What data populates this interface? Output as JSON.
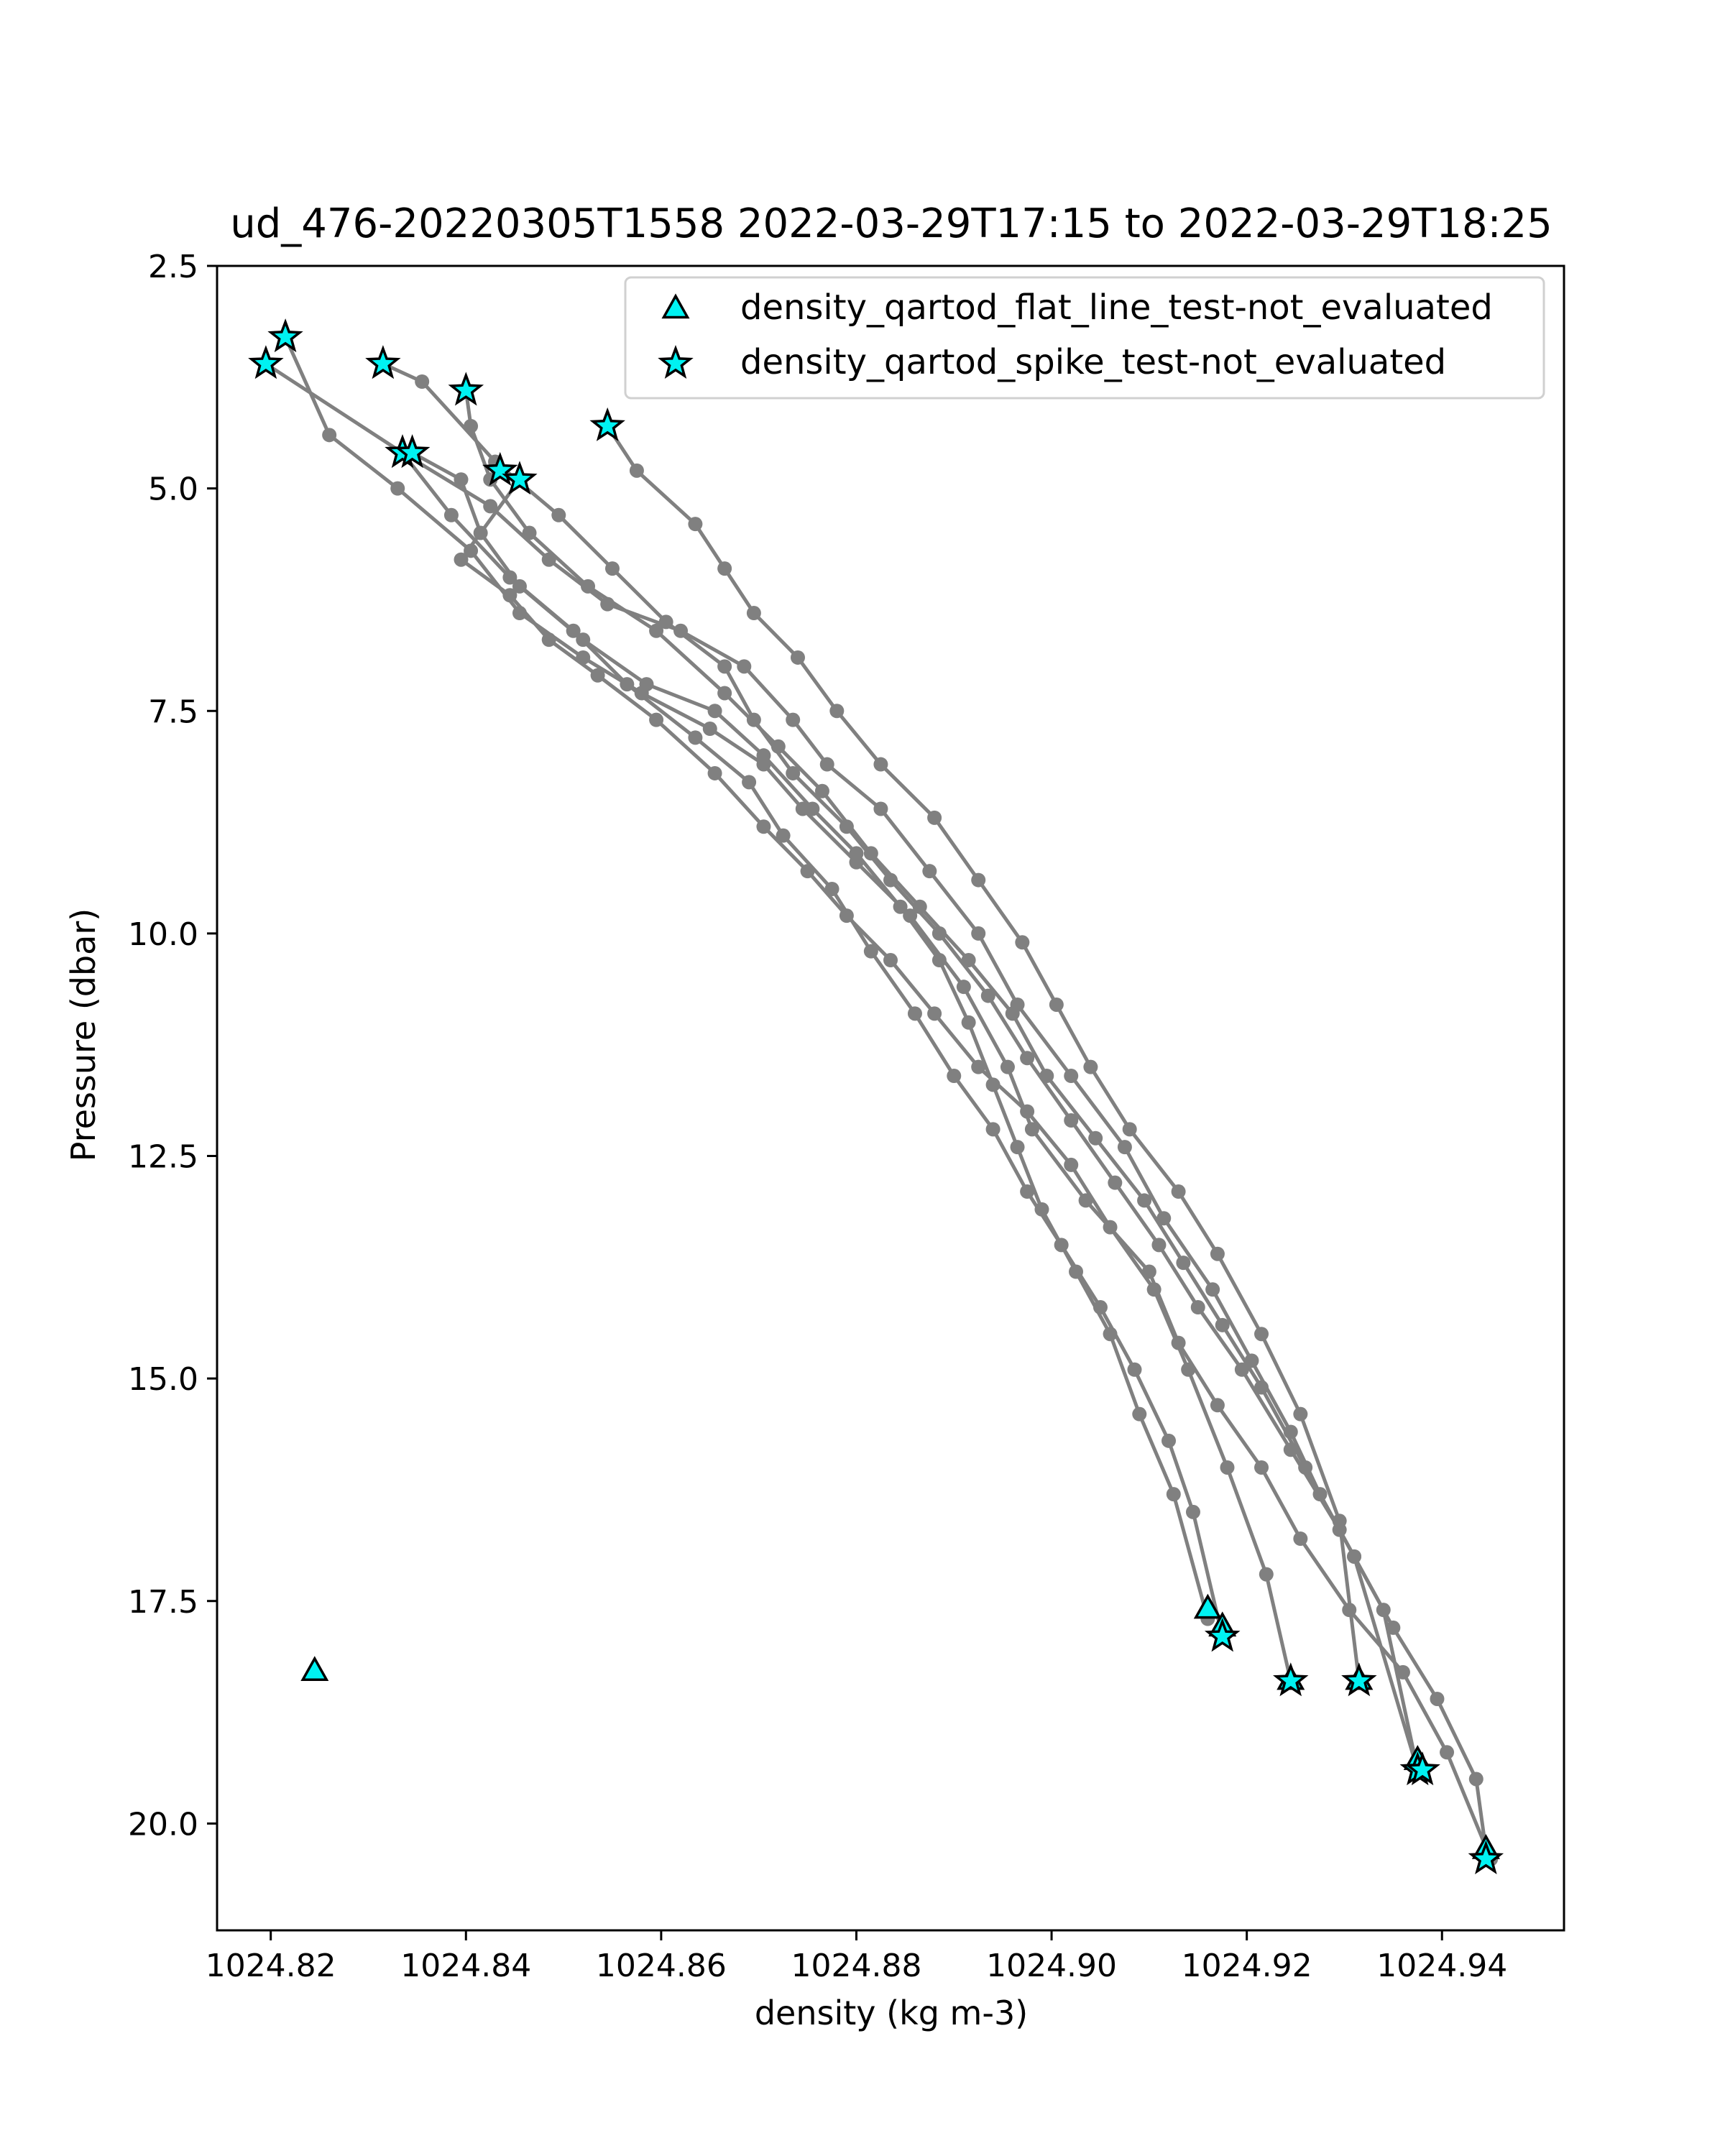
{
  "chart_data": {
    "type": "scatter",
    "title": "ud_476-20220305T1558 2022-03-29T17:15 to 2022-03-29T18:25",
    "xlabel": "density (kg m-3)",
    "ylabel": "Pressure (dbar)",
    "xlim": [
      1024.8145,
      1024.9525
    ],
    "ylim": [
      21.2,
      2.5
    ],
    "y_inverted": true,
    "xticks": [
      1024.82,
      1024.84,
      1024.86,
      1024.88,
      1024.9,
      1024.92,
      1024.94
    ],
    "xtick_labels": [
      "1024.82",
      "1024.84",
      "1024.86",
      "1024.88",
      "1024.90",
      "1024.92",
      "1024.94"
    ],
    "yticks": [
      2.5,
      5.0,
      7.5,
      10.0,
      12.5,
      15.0,
      17.5,
      20.0
    ],
    "ytick_labels": [
      "2.5",
      "5.0",
      "7.5",
      "10.0",
      "12.5",
      "15.0",
      "17.5",
      "20.0"
    ],
    "grid": false,
    "legend_position": "top-right",
    "colors": {
      "profile_line": "#808080",
      "marker_fill": "#00f2f2",
      "marker_edge": "#000000"
    },
    "profiles": [
      {
        "x": [
          1024.8215,
          1024.826,
          1024.833,
          1024.8405,
          1024.8455,
          1024.852,
          1024.858,
          1024.865,
          1024.8705,
          1024.8745,
          1024.88,
          1024.8855,
          1024.891,
          1024.8955,
          1024.898,
          1024.9035,
          1024.91,
          1024.913,
          1024.917,
          1024.9215,
          1024.9255,
          1024.9305,
          1024.936,
          1024.9405,
          1024.945
        ],
        "y": [
          3.3,
          4.4,
          5.0,
          5.7,
          6.4,
          6.9,
          7.3,
          7.7,
          8.1,
          8.6,
          9.2,
          9.8,
          10.6,
          11.5,
          12.2,
          13.0,
          13.8,
          14.6,
          15.3,
          16.0,
          16.8,
          17.6,
          18.3,
          19.2,
          20.4
        ]
      },
      {
        "x": [
          1024.8195,
          1024.8335,
          1024.8425,
          1024.8485,
          1024.8545,
          1024.862,
          1024.8685,
          1024.8735,
          1024.877,
          1024.8825,
          1024.8875,
          1024.8925,
          1024.8965,
          1024.902,
          1024.9075,
          1024.9115,
          1024.9165,
          1024.9205,
          1024.9245,
          1024.9275,
          1024.931,
          1024.935,
          1024.9395,
          1024.9435,
          1024.9445
        ],
        "y": [
          3.6,
          4.6,
          5.2,
          5.8,
          6.3,
          6.6,
          7.0,
          7.6,
          8.1,
          8.6,
          9.3,
          10.0,
          10.8,
          11.6,
          12.4,
          13.2,
          14.0,
          14.8,
          15.6,
          16.3,
          17.0,
          17.8,
          18.6,
          19.5,
          20.3
        ]
      },
      {
        "x": [
          1024.8315,
          1024.8355,
          1024.843,
          1024.8495,
          1024.855,
          1024.8605,
          1024.8665,
          1024.8695,
          1024.8735,
          1024.879,
          1024.8835,
          1024.8885,
          1024.8935,
          1024.8975,
          1024.902,
          1024.9065,
          1024.911,
          1024.915,
          1024.9195,
          1024.9245,
          1024.9295,
          1024.934,
          1024.9375
        ],
        "y": [
          3.6,
          3.8,
          4.7,
          5.3,
          5.9,
          6.5,
          7.0,
          7.6,
          8.2,
          8.8,
          9.4,
          10.0,
          10.7,
          11.4,
          12.1,
          12.8,
          13.5,
          14.2,
          14.9,
          15.8,
          16.7,
          17.6,
          19.4
        ]
      },
      {
        "x": [
          1024.84,
          1024.8405,
          1024.8425,
          1024.8465,
          1024.8525,
          1024.8595,
          1024.8665,
          1024.872,
          1024.8765,
          1024.8815,
          1024.8865,
          1024.8915,
          1024.896,
          1024.8995,
          1024.9045,
          1024.9095,
          1024.9135,
          1024.9175,
          1024.9215,
          1024.926,
          1024.931,
          1024.9375
        ],
        "y": [
          3.9,
          4.3,
          4.9,
          5.5,
          6.1,
          6.6,
          7.3,
          7.9,
          8.4,
          9.1,
          9.7,
          10.3,
          10.9,
          11.6,
          12.3,
          13.0,
          13.7,
          14.4,
          15.1,
          16.0,
          17.0,
          19.4
        ]
      },
      {
        "x": [
          1024.8545,
          1024.8575,
          1024.8635,
          1024.8665,
          1024.8695,
          1024.874,
          1024.878,
          1024.8825,
          1024.888,
          1024.8925,
          1024.897,
          1024.9005,
          1024.904,
          1024.908,
          1024.913,
          1024.917,
          1024.9215,
          1024.9255,
          1024.9295,
          1024.9315
        ],
        "y": [
          4.3,
          4.8,
          5.4,
          5.9,
          6.4,
          6.9,
          7.5,
          8.1,
          8.7,
          9.4,
          10.1,
          10.8,
          11.5,
          12.2,
          12.9,
          13.6,
          14.5,
          15.4,
          16.6,
          18.4
        ]
      },
      {
        "x": [
          1024.8455,
          1024.8395,
          1024.8445,
          1024.8485,
          1024.8535,
          1024.8595,
          1024.8655,
          1024.8705,
          1024.875,
          1024.879,
          1024.8835,
          1024.888,
          1024.8925,
          1024.8975,
          1024.902,
          1024.906,
          1024.9105,
          1024.914,
          1024.918,
          1024.922,
          1024.9245
        ],
        "y": [
          4.9,
          5.8,
          6.2,
          6.7,
          7.1,
          7.6,
          8.2,
          8.8,
          9.3,
          9.8,
          10.3,
          10.9,
          11.5,
          12.0,
          12.6,
          13.3,
          14.0,
          14.9,
          16.0,
          17.2,
          18.4
        ]
      },
      {
        "x": [
          1024.8335,
          1024.8385,
          1024.8445,
          1024.851,
          1024.8565,
          1024.8635,
          1024.869,
          1024.8725,
          1024.8775,
          1024.8815,
          1024.886,
          1024.89,
          1024.894,
          1024.8975,
          1024.901,
          1024.905,
          1024.9085,
          1024.912,
          1024.9145,
          1024.9175
        ],
        "y": [
          4.6,
          5.3,
          6.0,
          6.6,
          7.2,
          7.8,
          8.3,
          8.9,
          9.5,
          10.2,
          10.9,
          11.6,
          12.2,
          12.9,
          13.5,
          14.2,
          14.9,
          15.7,
          16.5,
          17.9
        ]
      },
      {
        "x": [
          1024.8345,
          1024.8395,
          1024.8415,
          1024.8455,
          1024.852,
          1024.8585,
          1024.8655,
          1024.8705,
          1024.8755,
          1024.88,
          1024.8845,
          1024.8885,
          1024.8915,
          1024.894,
          1024.8965,
          1024.899,
          1024.9025,
          1024.906,
          1024.909,
          1024.9125,
          1024.916
        ],
        "y": [
          4.6,
          4.9,
          5.5,
          6.1,
          6.7,
          7.2,
          7.5,
          8.0,
          8.6,
          9.1,
          9.7,
          10.3,
          11.0,
          11.7,
          12.4,
          13.1,
          13.8,
          14.5,
          15.4,
          16.3,
          17.7
        ]
      }
    ],
    "series": [
      {
        "name": "density_qartod_flat_line_test-not_evaluated",
        "marker": "triangle",
        "x": [
          1024.8245,
          1024.9245,
          1024.9375,
          1024.9445,
          1024.916,
          1024.9315,
          1024.9175
        ],
        "y": [
          18.3,
          18.4,
          19.3,
          20.3,
          17.6,
          18.4,
          17.8
        ]
      },
      {
        "name": "density_qartod_spike_test-not_evaluated",
        "marker": "star",
        "x": [
          1024.8215,
          1024.8195,
          1024.8315,
          1024.84,
          1024.8335,
          1024.8345,
          1024.8435,
          1024.8455,
          1024.8545,
          1024.9175,
          1024.9245,
          1024.9315,
          1024.9375,
          1024.938,
          1024.9445
        ],
        "y": [
          3.3,
          3.6,
          3.6,
          3.9,
          4.6,
          4.6,
          4.8,
          4.9,
          4.3,
          17.9,
          18.4,
          18.4,
          19.4,
          19.4,
          20.4
        ]
      }
    ]
  }
}
